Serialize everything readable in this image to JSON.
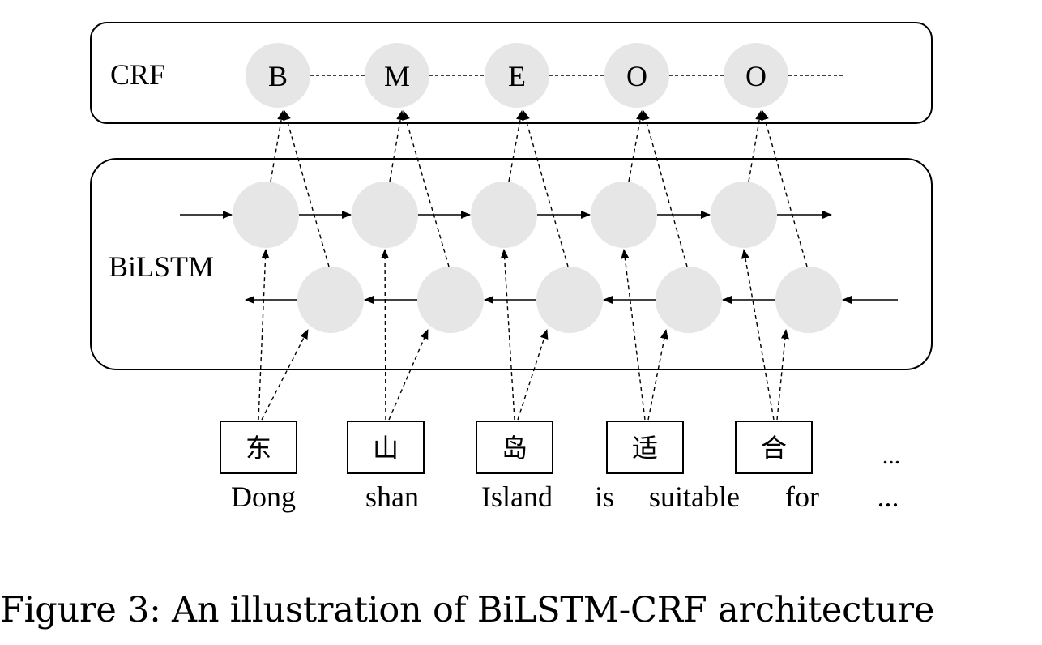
{
  "labels": {
    "crf": "CRF",
    "bilstm": "BiLSTM"
  },
  "tags": [
    "B",
    "M",
    "E",
    "O",
    "O"
  ],
  "characters": [
    "东",
    "山",
    "岛",
    "适",
    "合"
  ],
  "char_ellipsis": "...",
  "words": [
    "Dong",
    "shan",
    "Island",
    "is",
    "suitable",
    "for",
    "..."
  ],
  "caption": "Figure 3: An illustration of BiLSTM-CRF architecture",
  "colors": {
    "node_fill": "#e6e6e6",
    "stroke": "#000000"
  }
}
